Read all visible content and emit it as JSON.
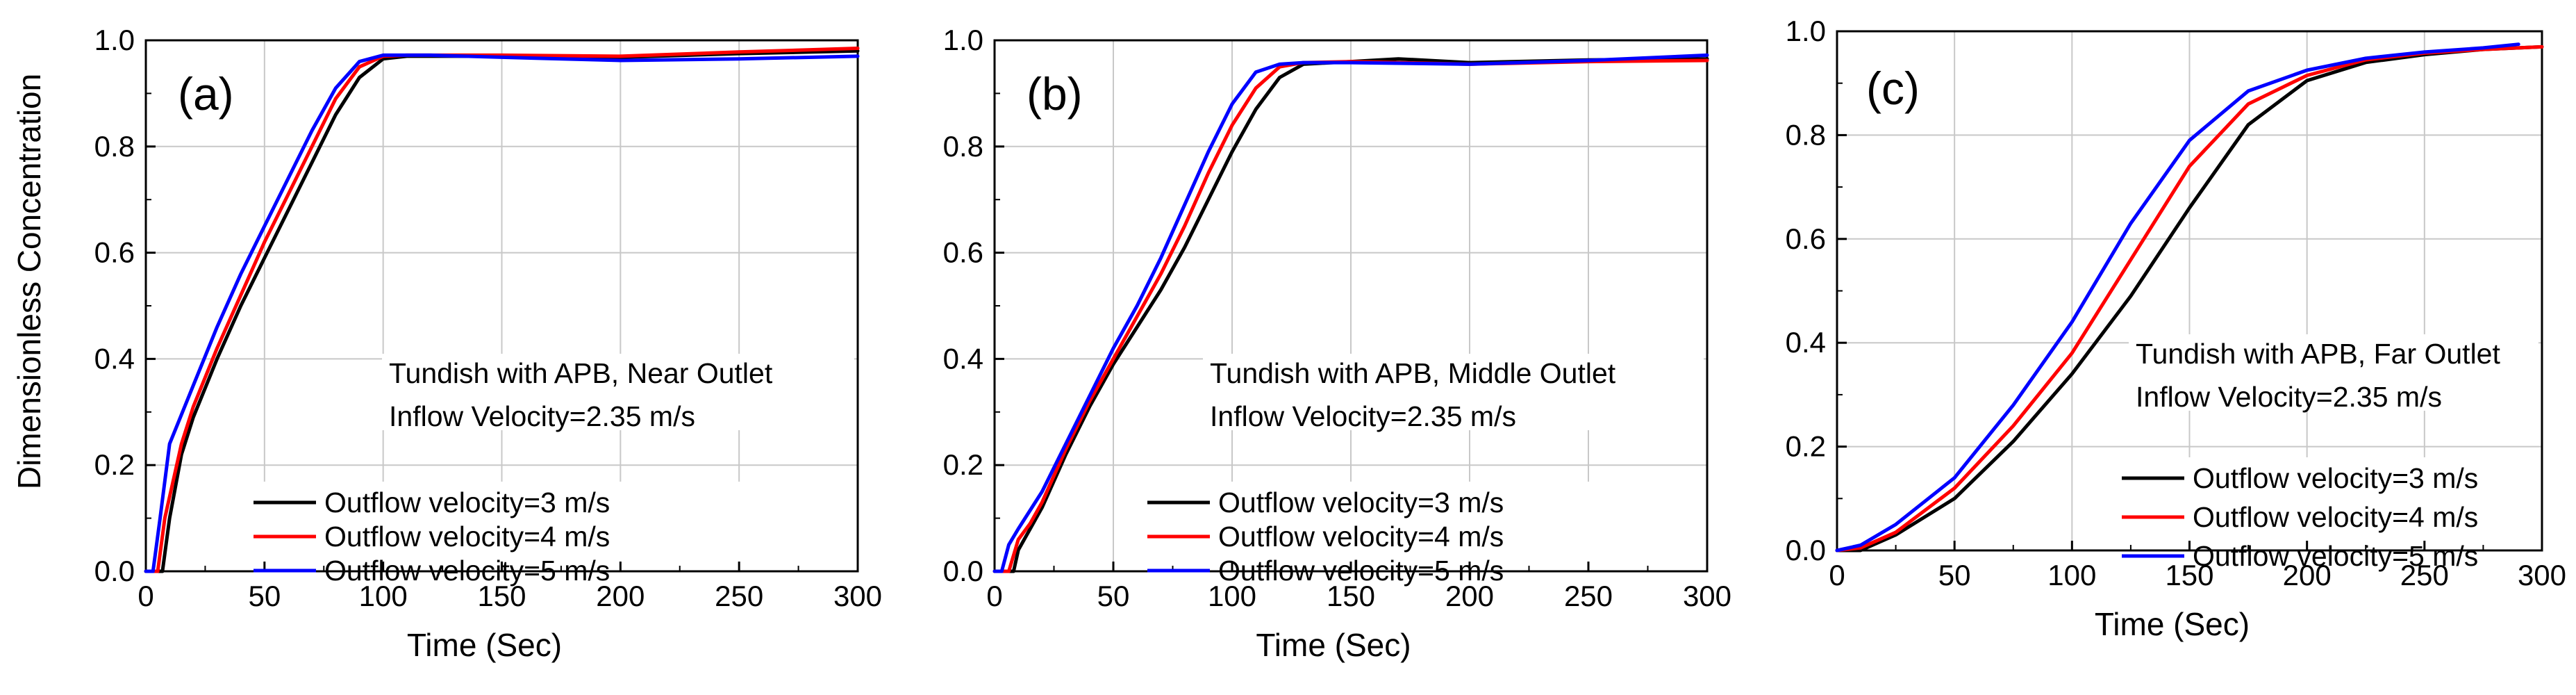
{
  "figure": {
    "shared_ylabel": "Dimensionless Concentration"
  },
  "chart_data": [
    {
      "type": "line",
      "panel_label": "(a)",
      "xlabel": "Time (Sec)",
      "ylabel": "Dimensionless Concentration",
      "xlim": [
        0,
        300
      ],
      "ylim": [
        0,
        1.0
      ],
      "xticks": [
        "0",
        "50",
        "100",
        "150",
        "200",
        "250",
        "300"
      ],
      "yticks": [
        "0.0",
        "0.2",
        "0.4",
        "0.6",
        "0.8",
        "1.0"
      ],
      "grid": true,
      "annotation": [
        "Tundish with APB, Near Outlet",
        "Inflow Velocity=2.35 m/s"
      ],
      "legend_position": "bottom-right",
      "series": [
        {
          "name": "Outflow velocity=3 m/s",
          "color": "#000000",
          "x": [
            0,
            7,
            10,
            15,
            20,
            30,
            40,
            50,
            60,
            70,
            80,
            90,
            100,
            110,
            120,
            150,
            200,
            250,
            300
          ],
          "y": [
            0,
            0,
            0.1,
            0.22,
            0.29,
            0.4,
            0.5,
            0.59,
            0.68,
            0.77,
            0.86,
            0.93,
            0.965,
            0.97,
            0.97,
            0.97,
            0.968,
            0.975,
            0.98
          ]
        },
        {
          "name": "Outflow velocity=4 m/s",
          "color": "#ff0000",
          "x": [
            0,
            5,
            8,
            15,
            20,
            30,
            40,
            50,
            60,
            70,
            80,
            90,
            100,
            110,
            120,
            150,
            200,
            250,
            300
          ],
          "y": [
            0,
            0,
            0.1,
            0.24,
            0.31,
            0.42,
            0.52,
            0.62,
            0.71,
            0.8,
            0.89,
            0.95,
            0.97,
            0.972,
            0.972,
            0.972,
            0.97,
            0.978,
            0.985
          ]
        },
        {
          "name": "Outflow velocity=5 m/s",
          "color": "#0000ff",
          "x": [
            0,
            3,
            6,
            10,
            20,
            30,
            40,
            50,
            60,
            70,
            80,
            90,
            100,
            110,
            120,
            150,
            200,
            250,
            300
          ],
          "y": [
            0,
            0,
            0.1,
            0.24,
            0.35,
            0.46,
            0.56,
            0.65,
            0.74,
            0.83,
            0.91,
            0.96,
            0.972,
            0.972,
            0.972,
            0.968,
            0.962,
            0.965,
            0.97
          ]
        }
      ]
    },
    {
      "type": "line",
      "panel_label": "(b)",
      "xlabel": "Time (Sec)",
      "ylabel": "",
      "xlim": [
        0,
        300
      ],
      "ylim": [
        0,
        1.0
      ],
      "xticks": [
        "0",
        "50",
        "100",
        "150",
        "200",
        "250",
        "300"
      ],
      "yticks": [
        "0.0",
        "0.2",
        "0.4",
        "0.6",
        "0.8",
        "1.0"
      ],
      "grid": true,
      "annotation": [
        "Tundish with APB, Middle Outlet",
        "Inflow Velocity=2.35 m/s"
      ],
      "legend_position": "bottom-right",
      "series": [
        {
          "name": "Outflow velocity=3 m/s",
          "color": "#000000",
          "x": [
            0,
            8,
            10,
            15,
            20,
            30,
            40,
            50,
            60,
            70,
            80,
            90,
            100,
            110,
            120,
            130,
            150,
            170,
            200,
            250,
            300
          ],
          "y": [
            0,
            0,
            0.04,
            0.08,
            0.12,
            0.22,
            0.31,
            0.39,
            0.46,
            0.53,
            0.61,
            0.7,
            0.79,
            0.87,
            0.93,
            0.955,
            0.96,
            0.965,
            0.958,
            0.963,
            0.965
          ]
        },
        {
          "name": "Outflow velocity=4 m/s",
          "color": "#ff0000",
          "x": [
            0,
            6,
            10,
            15,
            20,
            30,
            40,
            50,
            60,
            70,
            80,
            90,
            100,
            110,
            120,
            130,
            150,
            200,
            250,
            300
          ],
          "y": [
            0,
            0,
            0.06,
            0.09,
            0.13,
            0.23,
            0.32,
            0.4,
            0.48,
            0.56,
            0.65,
            0.75,
            0.84,
            0.91,
            0.95,
            0.958,
            0.96,
            0.955,
            0.96,
            0.962
          ]
        },
        {
          "name": "Outflow velocity=5 m/s",
          "color": "#0000ff",
          "x": [
            0,
            3,
            6,
            10,
            20,
            30,
            40,
            50,
            60,
            70,
            80,
            90,
            100,
            110,
            120,
            130,
            150,
            200,
            250,
            300
          ],
          "y": [
            0,
            0,
            0.05,
            0.08,
            0.15,
            0.24,
            0.33,
            0.42,
            0.5,
            0.59,
            0.69,
            0.79,
            0.88,
            0.94,
            0.955,
            0.958,
            0.958,
            0.955,
            0.962,
            0.972
          ]
        }
      ]
    },
    {
      "type": "line",
      "panel_label": "(c)",
      "xlabel": "Time (Sec)",
      "ylabel": "",
      "xlim": [
        0,
        300
      ],
      "ylim": [
        0,
        1.0
      ],
      "xticks": [
        "0",
        "50",
        "100",
        "150",
        "200",
        "250",
        "300"
      ],
      "yticks": [
        "0.0",
        "0.2",
        "0.4",
        "0.6",
        "0.8",
        "1.0"
      ],
      "grid": true,
      "annotation": [
        "Tundish with APB, Far Outlet",
        "Inflow Velocity=2.35 m/s"
      ],
      "legend_position": "bottom-right",
      "series": [
        {
          "name": "Outflow velocity=3 m/s",
          "color": "#000000",
          "x": [
            0,
            10,
            25,
            50,
            75,
            100,
            125,
            150,
            175,
            200,
            225,
            250,
            275,
            300
          ],
          "y": [
            0,
            0.0,
            0.03,
            0.1,
            0.21,
            0.34,
            0.49,
            0.66,
            0.82,
            0.905,
            0.94,
            0.955,
            0.965,
            0.97
          ]
        },
        {
          "name": "Outflow velocity=4 m/s",
          "color": "#ff0000",
          "x": [
            0,
            10,
            25,
            50,
            75,
            100,
            125,
            150,
            175,
            200,
            225,
            250,
            275,
            300
          ],
          "y": [
            0,
            0.005,
            0.035,
            0.12,
            0.24,
            0.38,
            0.56,
            0.74,
            0.86,
            0.915,
            0.945,
            0.958,
            0.965,
            0.97
          ]
        },
        {
          "name": "Outflow velocity=5 m/s",
          "color": "#0000ff",
          "x": [
            0,
            10,
            25,
            50,
            75,
            100,
            125,
            150,
            175,
            200,
            225,
            250,
            275,
            290
          ],
          "y": [
            0,
            0.01,
            0.05,
            0.14,
            0.28,
            0.44,
            0.63,
            0.79,
            0.885,
            0.925,
            0.948,
            0.96,
            0.968,
            0.975
          ]
        }
      ]
    }
  ]
}
